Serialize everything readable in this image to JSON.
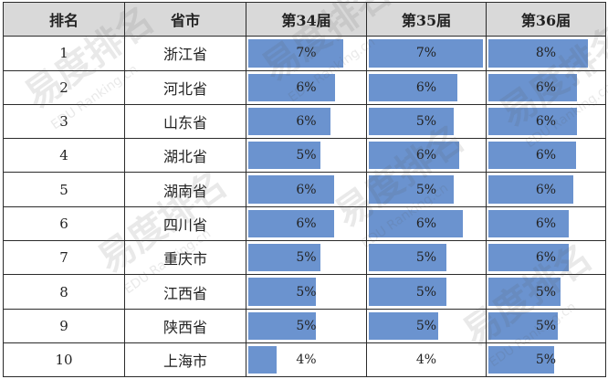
{
  "table": {
    "headers": [
      "排名",
      "省市",
      "第34届",
      "第35届",
      "第36届"
    ],
    "rows": [
      {
        "rank": "1",
        "province": "浙江省",
        "s34": "7%",
        "s35": "7%",
        "s36": "8%"
      },
      {
        "rank": "2",
        "province": "河北省",
        "s34": "6%",
        "s35": "6%",
        "s36": "6%"
      },
      {
        "rank": "3",
        "province": "山东省",
        "s34": "6%",
        "s35": "5%",
        "s36": "6%"
      },
      {
        "rank": "4",
        "province": "湖北省",
        "s34": "5%",
        "s35": "6%",
        "s36": "6%"
      },
      {
        "rank": "5",
        "province": "湖南省",
        "s34": "6%",
        "s35": "5%",
        "s36": "6%"
      },
      {
        "rank": "6",
        "province": "四川省",
        "s34": "6%",
        "s35": "6%",
        "s36": "6%"
      },
      {
        "rank": "7",
        "province": "重庆市",
        "s34": "5%",
        "s35": "5%",
        "s36": "6%"
      },
      {
        "rank": "8",
        "province": "江西省",
        "s34": "5%",
        "s35": "5%",
        "s36": "5%"
      },
      {
        "rank": "9",
        "province": "陕西省",
        "s34": "5%",
        "s35": "5%",
        "s36": "5%"
      },
      {
        "rank": "10",
        "province": "上海市",
        "s34": "4%",
        "s35": "4%",
        "s36": "5%"
      }
    ],
    "bar_fraction": {
      "s34": [
        0.81,
        0.74,
        0.7,
        0.62,
        0.73,
        0.73,
        0.62,
        0.58,
        0.58,
        0.25
      ],
      "s35": [
        0.98,
        0.76,
        0.73,
        0.78,
        0.73,
        0.81,
        0.67,
        0.67,
        0.6,
        0.0
      ],
      "s36": [
        0.85,
        0.76,
        0.76,
        0.75,
        0.73,
        0.69,
        0.69,
        0.62,
        0.6,
        0.57
      ]
    }
  },
  "colors": {
    "bar": "#6b93cf",
    "header_bg": "#d9d9d9",
    "border": "#2b2b2b"
  },
  "watermark": {
    "cn": "易度排名",
    "en": "EDU Ranking.cn"
  }
}
